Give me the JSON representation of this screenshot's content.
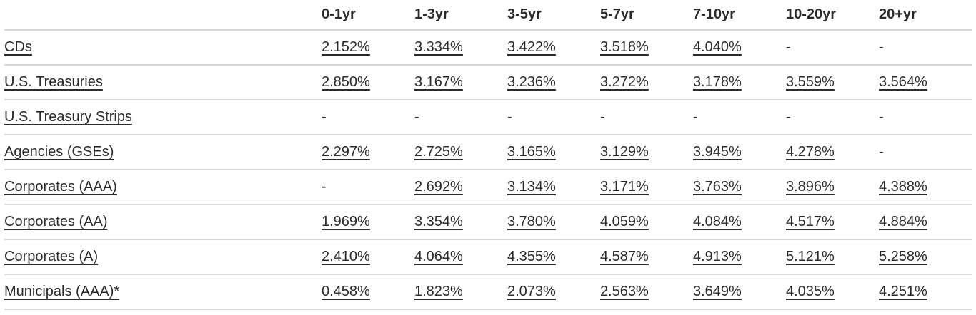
{
  "table": {
    "columns": [
      "0-1yr",
      "1-3yr",
      "3-5yr",
      "5-7yr",
      "7-10yr",
      "10-20yr",
      "20+yr"
    ],
    "rows": [
      {
        "label": "CDs",
        "values": [
          "2.152%",
          "3.334%",
          "3.422%",
          "3.518%",
          "4.040%",
          "-",
          "-"
        ]
      },
      {
        "label": "U.S. Treasuries",
        "values": [
          "2.850%",
          "3.167%",
          "3.236%",
          "3.272%",
          "3.178%",
          "3.559%",
          "3.564%"
        ]
      },
      {
        "label": "U.S. Treasury Strips",
        "values": [
          "-",
          "-",
          "-",
          "-",
          "-",
          "-",
          "-"
        ]
      },
      {
        "label": "Agencies (GSEs)",
        "values": [
          "2.297%",
          "2.725%",
          "3.165%",
          "3.129%",
          "3.945%",
          "4.278%",
          "-"
        ]
      },
      {
        "label": "Corporates (AAA)",
        "values": [
          "-",
          "2.692%",
          "3.134%",
          "3.171%",
          "3.763%",
          "3.896%",
          "4.388%"
        ]
      },
      {
        "label": "Corporates (AA)",
        "values": [
          "1.969%",
          "3.354%",
          "3.780%",
          "4.059%",
          "4.084%",
          "4.517%",
          "4.884%"
        ]
      },
      {
        "label": "Corporates (A)",
        "values": [
          "2.410%",
          "4.064%",
          "4.355%",
          "4.587%",
          "4.913%",
          "5.121%",
          "5.258%"
        ]
      },
      {
        "label": "Municipals (AAA)*",
        "values": [
          "0.458%",
          "1.823%",
          "2.073%",
          "2.563%",
          "3.649%",
          "4.035%",
          "4.251%"
        ]
      }
    ],
    "empty_cell": "-"
  },
  "colors": {
    "text": "#2b2b2b",
    "divider": "#d8d8d8"
  }
}
